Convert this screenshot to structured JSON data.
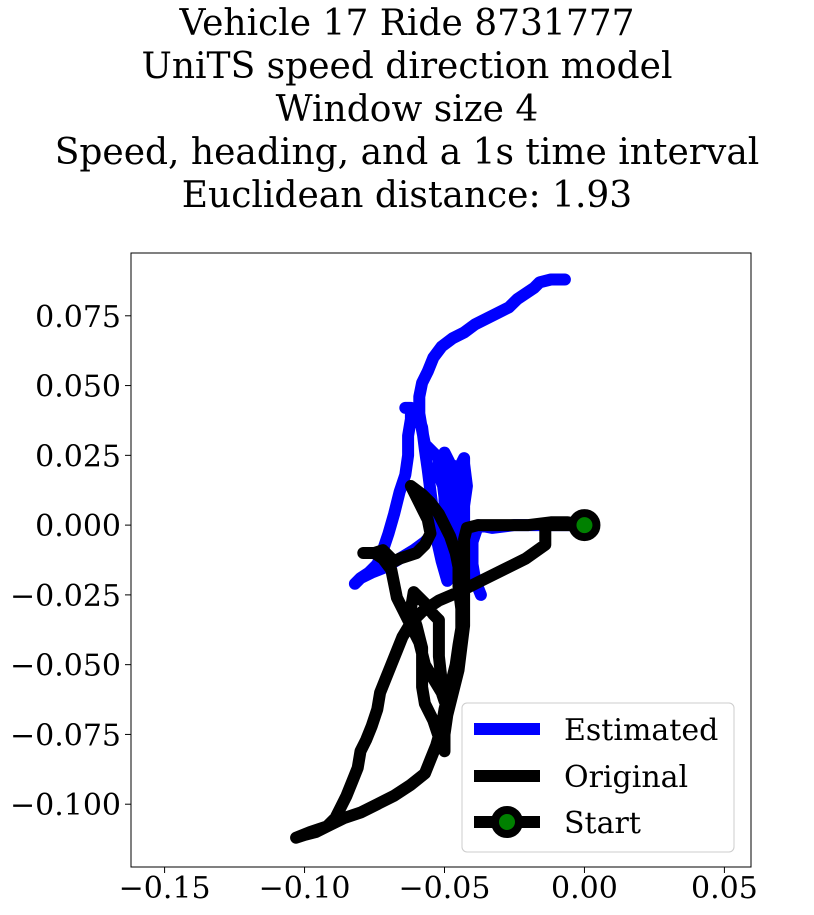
{
  "chart_data": {
    "type": "line",
    "title_lines": [
      "Vehicle 17 Ride 8731777",
      "UniTS speed direction model",
      "Window size 4",
      "Speed, heading, and a 1s time interval",
      "Euclidean distance: 1.93"
    ],
    "xlabel": "",
    "ylabel": "",
    "xlim": [
      -0.162,
      0.0595
    ],
    "ylim": [
      -0.1225,
      0.0975
    ],
    "xticks": [
      -0.15,
      -0.1,
      -0.05,
      0.0,
      0.05
    ],
    "xtick_labels": [
      "−0.15",
      "−0.10",
      "−0.05",
      "0.00",
      "0.05"
    ],
    "yticks": [
      0.075,
      0.05,
      0.025,
      0.0,
      -0.025,
      -0.05,
      -0.075,
      -0.1
    ],
    "ytick_labels": [
      "0.075",
      "0.050",
      "0.025",
      "0.000",
      "−0.025",
      "−0.050",
      "−0.075",
      "−0.100"
    ],
    "grid": false,
    "legend_position": "bottom-right",
    "series": [
      {
        "name": "Estimated",
        "color": "#0000ff",
        "points": [
          [
            0.0,
            0.0
          ],
          [
            -0.007,
            0.0
          ],
          [
            -0.015,
            0.0
          ],
          [
            -0.025,
            0.0
          ],
          [
            -0.033,
            -0.001
          ],
          [
            -0.038,
            0.0
          ],
          [
            -0.04,
            -0.006
          ],
          [
            -0.04,
            -0.014
          ],
          [
            -0.039,
            -0.02
          ],
          [
            -0.037,
            -0.025
          ],
          [
            -0.039,
            -0.02
          ],
          [
            -0.04,
            -0.014
          ],
          [
            -0.042,
            -0.006
          ],
          [
            -0.043,
            0.0
          ],
          [
            -0.043,
            0.007
          ],
          [
            -0.042,
            0.014
          ],
          [
            -0.043,
            0.022
          ],
          [
            -0.043,
            0.024
          ],
          [
            -0.045,
            0.02
          ],
          [
            -0.048,
            0.022
          ],
          [
            -0.05,
            0.026
          ],
          [
            -0.048,
            0.022
          ],
          [
            -0.046,
            0.015
          ],
          [
            -0.045,
            0.008
          ],
          [
            -0.045,
            0.0
          ],
          [
            -0.043,
            -0.008
          ],
          [
            -0.044,
            -0.015
          ],
          [
            -0.045,
            -0.02
          ],
          [
            -0.046,
            -0.015
          ],
          [
            -0.047,
            -0.008
          ],
          [
            -0.048,
            0.0
          ],
          [
            -0.049,
            0.01
          ],
          [
            -0.052,
            0.018
          ],
          [
            -0.052,
            0.024
          ],
          [
            -0.051,
            0.018
          ],
          [
            -0.05,
            0.01
          ],
          [
            -0.05,
            0.0
          ],
          [
            -0.049,
            -0.01
          ],
          [
            -0.049,
            -0.02
          ],
          [
            -0.051,
            -0.013
          ],
          [
            -0.053,
            -0.004
          ],
          [
            -0.054,
            0.004
          ],
          [
            -0.055,
            0.012
          ],
          [
            -0.056,
            0.02
          ],
          [
            -0.057,
            0.027
          ],
          [
            -0.058,
            0.035
          ],
          [
            -0.06,
            0.041
          ],
          [
            -0.062,
            0.042
          ],
          [
            -0.064,
            0.042
          ],
          [
            -0.062,
            0.042
          ],
          [
            -0.062,
            0.038
          ],
          [
            -0.063,
            0.032
          ],
          [
            -0.063,
            0.025
          ],
          [
            -0.064,
            0.018
          ],
          [
            -0.066,
            0.012
          ],
          [
            -0.068,
            0.004
          ],
          [
            -0.07,
            -0.003
          ],
          [
            -0.072,
            -0.009
          ],
          [
            -0.074,
            -0.014
          ],
          [
            -0.077,
            -0.017
          ],
          [
            -0.08,
            -0.019
          ],
          [
            -0.082,
            -0.021
          ],
          [
            -0.08,
            -0.019
          ],
          [
            -0.076,
            -0.017
          ],
          [
            -0.071,
            -0.015
          ],
          [
            -0.066,
            -0.012
          ],
          [
            -0.061,
            -0.009
          ],
          [
            -0.057,
            -0.006
          ],
          [
            -0.054,
            -0.003
          ],
          [
            -0.052,
            0.0
          ],
          [
            -0.05,
            0.004
          ],
          [
            -0.049,
            0.01
          ],
          [
            -0.049,
            0.017
          ],
          [
            -0.051,
            0.023
          ],
          [
            -0.054,
            0.026
          ],
          [
            -0.057,
            0.029
          ],
          [
            -0.058,
            0.034
          ],
          [
            -0.059,
            0.04
          ],
          [
            -0.059,
            0.046
          ],
          [
            -0.058,
            0.051
          ],
          [
            -0.056,
            0.055
          ],
          [
            -0.054,
            0.06
          ],
          [
            -0.051,
            0.064
          ],
          [
            -0.047,
            0.067
          ],
          [
            -0.043,
            0.069
          ],
          [
            -0.039,
            0.072
          ],
          [
            -0.035,
            0.074
          ],
          [
            -0.031,
            0.076
          ],
          [
            -0.027,
            0.078
          ],
          [
            -0.024,
            0.081
          ],
          [
            -0.021,
            0.083
          ],
          [
            -0.018,
            0.085
          ],
          [
            -0.016,
            0.087
          ],
          [
            -0.012,
            0.088
          ],
          [
            -0.007,
            0.088
          ]
        ]
      },
      {
        "name": "Original",
        "color": "#000000",
        "points": [
          [
            0.0,
            0.0
          ],
          [
            -0.007,
            0.0
          ],
          [
            -0.014,
            0.0
          ],
          [
            -0.014,
            -0.007
          ],
          [
            -0.021,
            -0.012
          ],
          [
            -0.029,
            -0.016
          ],
          [
            -0.037,
            -0.02
          ],
          [
            -0.045,
            -0.024
          ],
          [
            -0.052,
            -0.027
          ],
          [
            -0.058,
            -0.031
          ],
          [
            -0.062,
            -0.035
          ],
          [
            -0.065,
            -0.04
          ],
          [
            -0.067,
            -0.045
          ],
          [
            -0.069,
            -0.05
          ],
          [
            -0.071,
            -0.055
          ],
          [
            -0.073,
            -0.06
          ],
          [
            -0.074,
            -0.066
          ],
          [
            -0.076,
            -0.072
          ],
          [
            -0.078,
            -0.077
          ],
          [
            -0.08,
            -0.081
          ],
          [
            -0.081,
            -0.087
          ],
          [
            -0.083,
            -0.092
          ],
          [
            -0.085,
            -0.097
          ],
          [
            -0.087,
            -0.101
          ],
          [
            -0.089,
            -0.105
          ],
          [
            -0.092,
            -0.108
          ],
          [
            -0.096,
            -0.11
          ],
          [
            -0.1,
            -0.111
          ],
          [
            -0.103,
            -0.112
          ],
          [
            -0.098,
            -0.11
          ],
          [
            -0.092,
            -0.108
          ],
          [
            -0.086,
            -0.105
          ],
          [
            -0.08,
            -0.103
          ],
          [
            -0.074,
            -0.1
          ],
          [
            -0.068,
            -0.097
          ],
          [
            -0.062,
            -0.093
          ],
          [
            -0.057,
            -0.089
          ],
          [
            -0.055,
            -0.084
          ],
          [
            -0.053,
            -0.079
          ],
          [
            -0.051,
            -0.072
          ],
          [
            -0.05,
            -0.066
          ],
          [
            -0.048,
            -0.058
          ],
          [
            -0.046,
            -0.05
          ],
          [
            -0.045,
            -0.043
          ],
          [
            -0.044,
            -0.037
          ],
          [
            -0.044,
            -0.03
          ],
          [
            -0.045,
            -0.022
          ],
          [
            -0.045,
            -0.015
          ],
          [
            -0.046,
            -0.01
          ],
          [
            -0.048,
            -0.004
          ],
          [
            -0.05,
            0.0
          ],
          [
            -0.052,
            0.004
          ],
          [
            -0.055,
            0.008
          ],
          [
            -0.058,
            0.011
          ],
          [
            -0.062,
            0.014
          ],
          [
            -0.06,
            0.01
          ],
          [
            -0.058,
            0.006
          ],
          [
            -0.056,
            0.002
          ],
          [
            -0.055,
            -0.003
          ],
          [
            -0.057,
            -0.007
          ],
          [
            -0.06,
            -0.01
          ],
          [
            -0.063,
            -0.011
          ],
          [
            -0.066,
            -0.012
          ],
          [
            -0.068,
            -0.013
          ],
          [
            -0.072,
            -0.009
          ],
          [
            -0.075,
            -0.01
          ],
          [
            -0.079,
            -0.01
          ],
          [
            -0.075,
            -0.01
          ],
          [
            -0.072,
            -0.012
          ],
          [
            -0.069,
            -0.016
          ],
          [
            -0.068,
            -0.021
          ],
          [
            -0.067,
            -0.026
          ],
          [
            -0.065,
            -0.03
          ],
          [
            -0.063,
            -0.034
          ],
          [
            -0.061,
            -0.038
          ],
          [
            -0.059,
            -0.042
          ],
          [
            -0.058,
            -0.046
          ],
          [
            -0.057,
            -0.05
          ],
          [
            -0.054,
            -0.055
          ],
          [
            -0.051,
            -0.06
          ],
          [
            -0.05,
            -0.063
          ],
          [
            -0.051,
            -0.056
          ],
          [
            -0.052,
            -0.047
          ],
          [
            -0.052,
            -0.04
          ],
          [
            -0.052,
            -0.034
          ],
          [
            -0.054,
            -0.032
          ],
          [
            -0.057,
            -0.028
          ],
          [
            -0.061,
            -0.024
          ],
          [
            -0.062,
            -0.03
          ],
          [
            -0.06,
            -0.036
          ],
          [
            -0.059,
            -0.04
          ],
          [
            -0.058,
            -0.044
          ],
          [
            -0.058,
            -0.05
          ],
          [
            -0.058,
            -0.058
          ],
          [
            -0.057,
            -0.064
          ],
          [
            -0.054,
            -0.07
          ],
          [
            -0.052,
            -0.076
          ],
          [
            -0.05,
            -0.081
          ],
          [
            -0.05,
            -0.075
          ],
          [
            -0.049,
            -0.068
          ],
          [
            -0.047,
            -0.06
          ],
          [
            -0.045,
            -0.052
          ],
          [
            -0.044,
            -0.044
          ],
          [
            -0.043,
            -0.036
          ],
          [
            -0.043,
            -0.03
          ],
          [
            -0.043,
            -0.025
          ],
          [
            -0.043,
            -0.018
          ],
          [
            -0.043,
            -0.01
          ],
          [
            -0.043,
            -0.005
          ],
          [
            -0.042,
            -0.001
          ],
          [
            -0.038,
            0.0
          ],
          [
            -0.03,
            0.0
          ],
          [
            -0.02,
            0.0
          ],
          [
            -0.012,
            0.001
          ],
          [
            -0.006,
            0.001
          ],
          [
            0.0,
            0.0
          ]
        ]
      }
    ],
    "start_marker": {
      "name": "Start",
      "x": 0.0,
      "y": 0.0,
      "edge_color": "#000000",
      "face_color": "#008000"
    },
    "legend": [
      {
        "label": "Estimated",
        "color": "#0000ff",
        "style": "line"
      },
      {
        "label": "Original",
        "color": "#000000",
        "style": "line"
      },
      {
        "label": "Start",
        "color": "#000000",
        "marker_color": "#008000",
        "style": "line-marker"
      }
    ]
  }
}
